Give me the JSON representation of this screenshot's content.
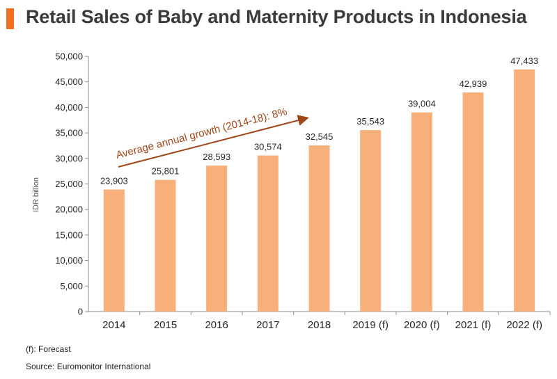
{
  "header": {
    "title": "Retail Sales of Baby and Maternity Products in Indonesia",
    "accent_color": "#f37021"
  },
  "chart_data": {
    "type": "bar",
    "title": "Retail Sales of Baby and Maternity Products in Indonesia",
    "xlabel": "",
    "ylabel": "IDR billion",
    "categories": [
      "2014",
      "2015",
      "2016",
      "2017",
      "2018",
      "2019 (f)",
      "2020 (f)",
      "2021 (f)",
      "2022 (f)"
    ],
    "values": [
      23903,
      25801,
      28593,
      30574,
      32545,
      35543,
      39004,
      42939,
      47433
    ],
    "value_labels": [
      "23,903",
      "25,801",
      "28,593",
      "30,574",
      "32,545",
      "35,543",
      "39,004",
      "42,939",
      "47,433"
    ],
    "ylim": [
      0,
      50000
    ],
    "yticks": [
      "0",
      "5,000",
      "10,000",
      "15,000",
      "20,000",
      "25,000",
      "30,000",
      "35,000",
      "40,000",
      "45,000",
      "50,000"
    ],
    "ytick_values": [
      0,
      5000,
      10000,
      15000,
      20000,
      25000,
      30000,
      35000,
      40000,
      45000,
      50000
    ],
    "grid": false,
    "bar_color": "#f8b07a",
    "annotation": {
      "text": "Average annual growth (2014-18): 8%",
      "color": "#a0471a"
    }
  },
  "footnotes": {
    "forecast": "(f): Forecast",
    "source": "Source: Euromonitor International"
  }
}
